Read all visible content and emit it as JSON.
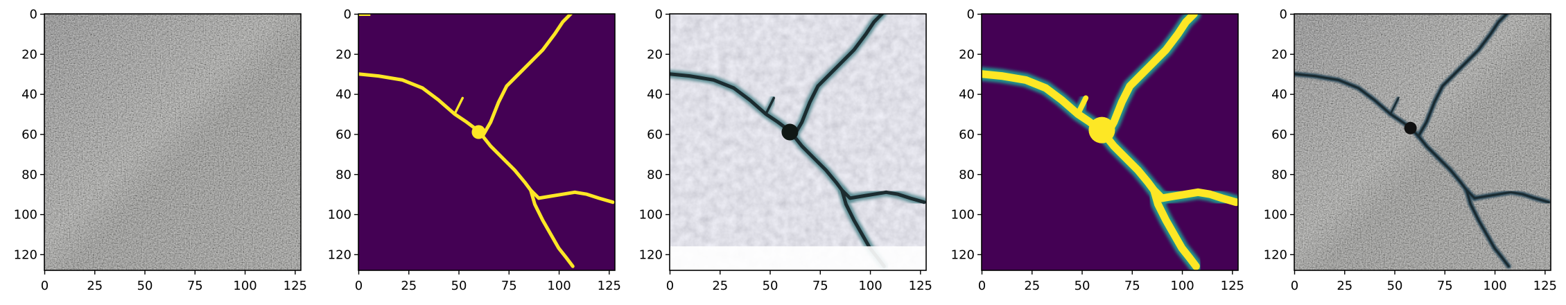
{
  "figure": {
    "panels": [
      {
        "name": "grayscale-concrete-input",
        "kind": "photo-gray",
        "x_ticks": [
          "0",
          "25",
          "50",
          "75",
          "100",
          "125"
        ],
        "y_ticks": [
          "0",
          "20",
          "40",
          "60",
          "80",
          "100",
          "120"
        ]
      },
      {
        "name": "ground-truth-crack-mask",
        "kind": "mask-binary",
        "x_ticks": [
          "0",
          "25",
          "50",
          "75",
          "100",
          "125"
        ],
        "y_ticks": [
          "0",
          "20",
          "40",
          "60",
          "80",
          "100",
          "120"
        ]
      },
      {
        "name": "reconstructed-rgb-output",
        "kind": "photo-bright",
        "x_ticks": [
          "0",
          "25",
          "50",
          "75",
          "100",
          "125"
        ],
        "y_ticks": [
          "0",
          "20",
          "40",
          "60",
          "80",
          "100",
          "120"
        ]
      },
      {
        "name": "predicted-crack-mask",
        "kind": "mask-soft",
        "x_ticks": [
          "0",
          "25",
          "50",
          "75",
          "100",
          "125"
        ],
        "y_ticks": [
          "0",
          "20",
          "40",
          "60",
          "80",
          "100",
          "120"
        ]
      },
      {
        "name": "overlay-crack-on-concrete",
        "kind": "photo-overlay",
        "x_ticks": [
          "0",
          "25",
          "50",
          "75",
          "100",
          "125"
        ],
        "y_ticks": [
          "0",
          "20",
          "40",
          "60",
          "80",
          "100",
          "120"
        ]
      }
    ],
    "colors": {
      "viridis_dark": "#440154",
      "viridis_bright": "#fde725",
      "concrete_gray": "#8e8e8e",
      "bright_background": "#e9e9f2",
      "crack_dark": "#1a2a30"
    }
  }
}
